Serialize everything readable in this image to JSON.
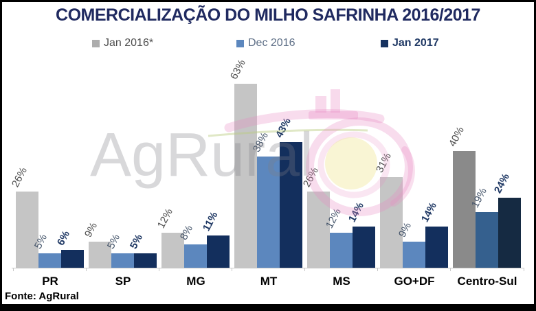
{
  "title": "COMERCIALIZAÇÃO DO MILHO SAFRINHA 2016/2017",
  "source": "Fonte: AgRural",
  "watermark": {
    "text": "AgRural",
    "logo": "agrural-rooster-swirl"
  },
  "legend": [
    {
      "label": "Jan 2016*",
      "color": "#ADADAD"
    },
    {
      "label": "Dec 2016",
      "color": "#5C87BE"
    },
    {
      "label": "Jan 2017",
      "color": "#16325F"
    }
  ],
  "chart_data": {
    "type": "bar",
    "title": "COMERCIALIZAÇÃO DO MILHO SAFRINHA 2016/2017",
    "categories": [
      "PR",
      "SP",
      "MG",
      "MT",
      "MS",
      "GO+DF",
      "Centro-Sul"
    ],
    "series": [
      {
        "name": "Jan 2016*",
        "values": [
          26,
          9,
          12,
          63,
          26,
          31,
          40
        ],
        "color": "#C5C5C5",
        "centro_sul_color": "#8A8A8A",
        "label_color": "#4D4D4D",
        "label_bold": false
      },
      {
        "name": "Dec 2016",
        "values": [
          5,
          5,
          8,
          38,
          12,
          9,
          19
        ],
        "color": "#5C87BE",
        "centro_sul_color": "#35608E",
        "label_color": "#44546A",
        "label_bold": false
      },
      {
        "name": "Jan 2017",
        "values": [
          6,
          5,
          11,
          43,
          14,
          14,
          24
        ],
        "color": "#132F5D",
        "centro_sul_color": "#152A42",
        "label_color": "#1F3864",
        "label_bold": true
      }
    ],
    "value_label_format": "{v}%",
    "ylim": [
      0,
      70
    ],
    "grid": false,
    "legend_position": "top",
    "xlabel": "",
    "ylabel": ""
  }
}
